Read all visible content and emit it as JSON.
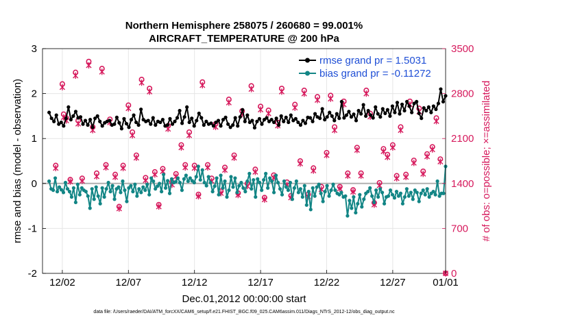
{
  "chart_data": {
    "type": "line",
    "title_line1": "Northern Hemisphere 258075 / 260680 = 99.001%",
    "title_line2": "AIRCRAFT_TEMPERATURE @ 200 hPa",
    "xlabel": "Dec.01,2012 00:00:00 start",
    "ylabel_left": "rmse and bias (model - observation)",
    "ylabel_right": "# of obs: o=possible; ×=assimilated",
    "footnote": "data file: /Users/raeder/DAI/ATM_forcXX/CAM6_setup/f.e21.FHIST_BGC.f09_025.CAM6assim.011/Diags_NTrS_2012-12/obs_diag_output.nc",
    "xlim": [
      0.5,
      31.0
    ],
    "x_ticks": [
      2,
      7,
      12,
      17,
      22,
      27,
      31
    ],
    "x_tick_labels": [
      "12/02",
      "12/07",
      "12/12",
      "12/17",
      "12/22",
      "12/27",
      "01/01"
    ],
    "ylim_left": [
      -2,
      3
    ],
    "left_ticks": [
      "-2",
      "-1",
      "0",
      "1",
      "2",
      "3"
    ],
    "ylim_right": [
      0,
      3500
    ],
    "right_ticks": [
      "0",
      "700",
      "1400",
      "2100",
      "2800",
      "3500"
    ],
    "grid": true,
    "zero_line": true,
    "legend_position": "top-right",
    "series": [
      {
        "name": "rmse grand pr = 1.5031",
        "color": "#000000",
        "values": [
          1.58,
          1.45,
          1.38,
          1.52,
          1.32,
          1.36,
          1.28,
          1.45,
          1.7,
          1.42,
          1.5,
          1.6,
          1.46,
          1.48,
          1.32,
          1.4,
          1.3,
          1.42,
          1.25,
          1.45,
          1.5,
          1.38,
          1.28,
          1.35,
          1.38,
          1.4,
          1.3,
          1.32,
          1.47,
          1.35,
          1.22,
          1.44,
          1.33,
          1.25,
          1.42,
          1.52,
          1.36,
          1.3,
          1.65,
          1.42,
          1.38,
          1.4,
          1.32,
          1.46,
          1.3,
          1.38,
          1.36,
          1.42,
          1.28,
          1.3,
          1.44,
          1.32,
          1.38,
          1.46,
          1.62,
          1.34,
          1.48,
          1.7,
          1.36,
          1.45,
          1.28,
          1.4,
          1.56,
          1.46,
          1.3,
          1.38,
          1.32,
          1.34,
          1.28,
          1.36,
          1.4,
          1.28,
          1.42,
          1.47,
          1.32,
          1.25,
          1.3,
          1.46,
          1.28,
          1.48,
          1.64,
          1.38,
          1.52,
          1.36,
          1.4,
          1.24,
          1.38,
          1.44,
          1.32,
          1.42,
          1.46,
          1.38,
          1.42,
          1.36,
          1.45,
          1.3,
          1.5,
          1.38,
          1.47,
          1.36,
          1.52,
          1.4,
          1.44,
          1.36,
          1.3,
          1.4,
          1.34,
          1.47,
          1.46,
          1.38,
          1.55,
          1.48,
          1.45,
          1.66,
          1.42,
          1.48,
          1.58,
          1.5,
          1.4,
          1.55,
          1.45,
          1.82,
          1.46,
          1.52,
          1.6,
          1.48,
          1.54,
          1.4,
          1.62,
          1.55,
          1.75,
          1.5,
          1.62,
          1.52,
          1.46,
          1.7,
          1.55,
          1.48,
          1.66,
          1.56,
          1.64,
          1.5,
          1.72,
          1.58,
          1.8,
          1.55,
          1.76,
          1.62,
          1.82,
          1.72,
          1.58,
          1.78,
          1.82,
          1.56,
          1.45,
          1.68,
          1.62,
          1.7,
          1.58,
          1.72,
          1.65,
          1.78,
          2.1,
          1.82,
          1.95
        ]
      },
      {
        "name": "bias grand pr = -0.11272",
        "color": "#128585",
        "values": [
          0.05,
          -0.12,
          -0.15,
          0.12,
          -0.18,
          -0.08,
          -0.14,
          -0.2,
          0.02,
          -0.12,
          -0.18,
          -0.3,
          -0.1,
          -0.42,
          -0.02,
          -0.25,
          -0.1,
          -0.15,
          -0.18,
          -0.28,
          -0.55,
          -0.12,
          -0.35,
          -0.08,
          -0.28,
          -0.45,
          -0.1,
          -0.3,
          -0.12,
          0.02,
          -0.18,
          -0.05,
          -0.35,
          -0.12,
          -0.08,
          -0.2,
          0.05,
          -0.15,
          -0.4,
          -0.1,
          -0.05,
          -0.18,
          -0.02,
          -0.28,
          -0.12,
          -0.2,
          -0.08,
          -0.15,
          -0.02,
          -0.25,
          0.12,
          0.05,
          -0.12,
          -0.06,
          0.0,
          -0.18,
          0.2,
          -0.1,
          0.06,
          -0.22,
          0.1,
          0.02,
          0.04,
          0.12,
          0.02,
          -0.15,
          0.1,
          0.18,
          0.05,
          0.12,
          0.06,
          0.02,
          0.15,
          0.38,
          0.08,
          0.3,
          0.02,
          -0.05,
          0.15,
          0.02,
          -0.18,
          -0.06,
          0.12,
          -0.25,
          0.18,
          -0.1,
          0.05,
          -0.3,
          -0.15,
          0.15,
          -0.08,
          0.12,
          -0.2,
          -0.05,
          0.02,
          -0.1,
          -0.18,
          0.05,
          0.22,
          -0.12,
          0.08,
          -0.3,
          0.1,
          0.02,
          -0.15,
          0.08,
          0.22,
          -0.1,
          0.12,
          0.05,
          -0.2,
          0.18,
          0.02,
          -0.12,
          -0.25,
          0.05,
          -0.08,
          -0.15,
          0.02,
          -0.35,
          -0.1,
          0.05,
          -0.2,
          -0.12,
          -0.3,
          -0.05,
          -0.48,
          -0.18,
          -0.58,
          -0.1,
          -0.28,
          -0.08,
          -0.02,
          -0.22,
          -0.4,
          -0.18,
          -0.05,
          -0.28,
          -0.15,
          -0.02,
          -0.15,
          -0.22,
          -0.25,
          -0.2,
          -0.3,
          -0.28,
          -0.72,
          -0.38,
          -0.55,
          -0.3,
          -0.65,
          -0.45,
          -0.25,
          -0.52,
          -0.35,
          -0.22,
          -0.18,
          -0.1,
          -0.28,
          -0.42,
          -0.15,
          -0.3,
          -0.12,
          -0.2,
          -0.45,
          -0.3,
          -0.28,
          -0.15,
          -0.25,
          -0.32,
          -0.18,
          -0.28,
          -0.22,
          -0.45,
          -0.3,
          -0.12,
          -0.28,
          -0.2,
          -0.35,
          -0.15,
          -0.2,
          -0.4,
          -0.22,
          -0.15,
          -0.25,
          -0.12,
          -0.3,
          -0.22,
          -0.18,
          -0.25,
          0.05,
          -0.28,
          -0.22,
          -0.22,
          0.38
        ]
      }
    ],
    "obs_counts": {
      "color": "#d6195c",
      "x": [
        1.5,
        2.0,
        2.1,
        2.3,
        2.6,
        3.0,
        3.2,
        3.5,
        4.0,
        4.3,
        4.6,
        5.0,
        5.3,
        5.6,
        6.0,
        6.3,
        6.6,
        7.0,
        7.3,
        7.6,
        8.0,
        8.3,
        8.6,
        9.0,
        9.3,
        9.6,
        10.0,
        10.3,
        10.6,
        11.0,
        11.3,
        11.6,
        12.0,
        12.3,
        12.6,
        13.0,
        13.3,
        13.6,
        14.0,
        14.3,
        14.6,
        15.0,
        15.3,
        15.6,
        16.0,
        16.3,
        16.6,
        17.0,
        17.3,
        17.6,
        18.0,
        18.3,
        18.6,
        19.0,
        19.3,
        19.6,
        20.0,
        20.3,
        20.6,
        21.0,
        21.3,
        21.6,
        22.0,
        22.3,
        22.6,
        23.0,
        23.3,
        23.6,
        24.0,
        24.3,
        24.6,
        25.0,
        25.3,
        25.6,
        26.0,
        26.3,
        26.6,
        27.0,
        27.3,
        27.6,
        28.0,
        28.3,
        28.6,
        29.0,
        29.3,
        29.6,
        30.0,
        30.3,
        30.6,
        31.0
      ],
      "possible": [
        1680,
        2950,
        2480,
        2420,
        1460,
        3130,
        2380,
        1480,
        3300,
        2280,
        1560,
        3190,
        1690,
        2400,
        1540,
        1040,
        1680,
        2620,
        2200,
        1840,
        3020,
        1490,
        2880,
        1580,
        1070,
        1630,
        2300,
        1420,
        1550,
        2000,
        1690,
        2200,
        1680,
        1230,
        2980,
        1690,
        1480,
        2330,
        1280,
        1650,
        2710,
        1840,
        1250,
        2530,
        1400,
        2920,
        1620,
        2600,
        1180,
        2540,
        1530,
        2350,
        2880,
        1420,
        1210,
        2630,
        1750,
        2850,
        1230,
        1640,
        2750,
        1350,
        1880,
        2770,
        2280,
        1350,
        2680,
        1560,
        1300,
        1960,
        1560,
        2850,
        2490,
        1100,
        1410,
        1940,
        1850,
        2000,
        1520,
        2280,
        1540,
        2680,
        1760,
        2570,
        1590,
        1860,
        1970,
        2420,
        1780,
        0
      ],
      "assimilated": [
        1640,
        2900,
        2430,
        2380,
        1430,
        3080,
        2330,
        1440,
        3240,
        2230,
        1510,
        3140,
        1650,
        2350,
        1500,
        1010,
        1640,
        2570,
        2150,
        1800,
        2970,
        1450,
        2830,
        1540,
        1040,
        1590,
        2250,
        1380,
        1510,
        1960,
        1650,
        2150,
        1640,
        1200,
        2930,
        1650,
        1440,
        2280,
        1250,
        1610,
        2660,
        1800,
        1220,
        2480,
        1360,
        2870,
        1580,
        2550,
        1150,
        2490,
        1490,
        2300,
        2830,
        1380,
        1180,
        2580,
        1710,
        2800,
        1200,
        1600,
        2700,
        1310,
        1840,
        2720,
        2230,
        1320,
        2630,
        1520,
        1270,
        1920,
        1520,
        2800,
        2440,
        1070,
        1370,
        1900,
        1810,
        1960,
        1480,
        2230,
        1500,
        2630,
        1720,
        2520,
        1550,
        1820,
        1930,
        2370,
        1740,
        0
      ]
    }
  }
}
